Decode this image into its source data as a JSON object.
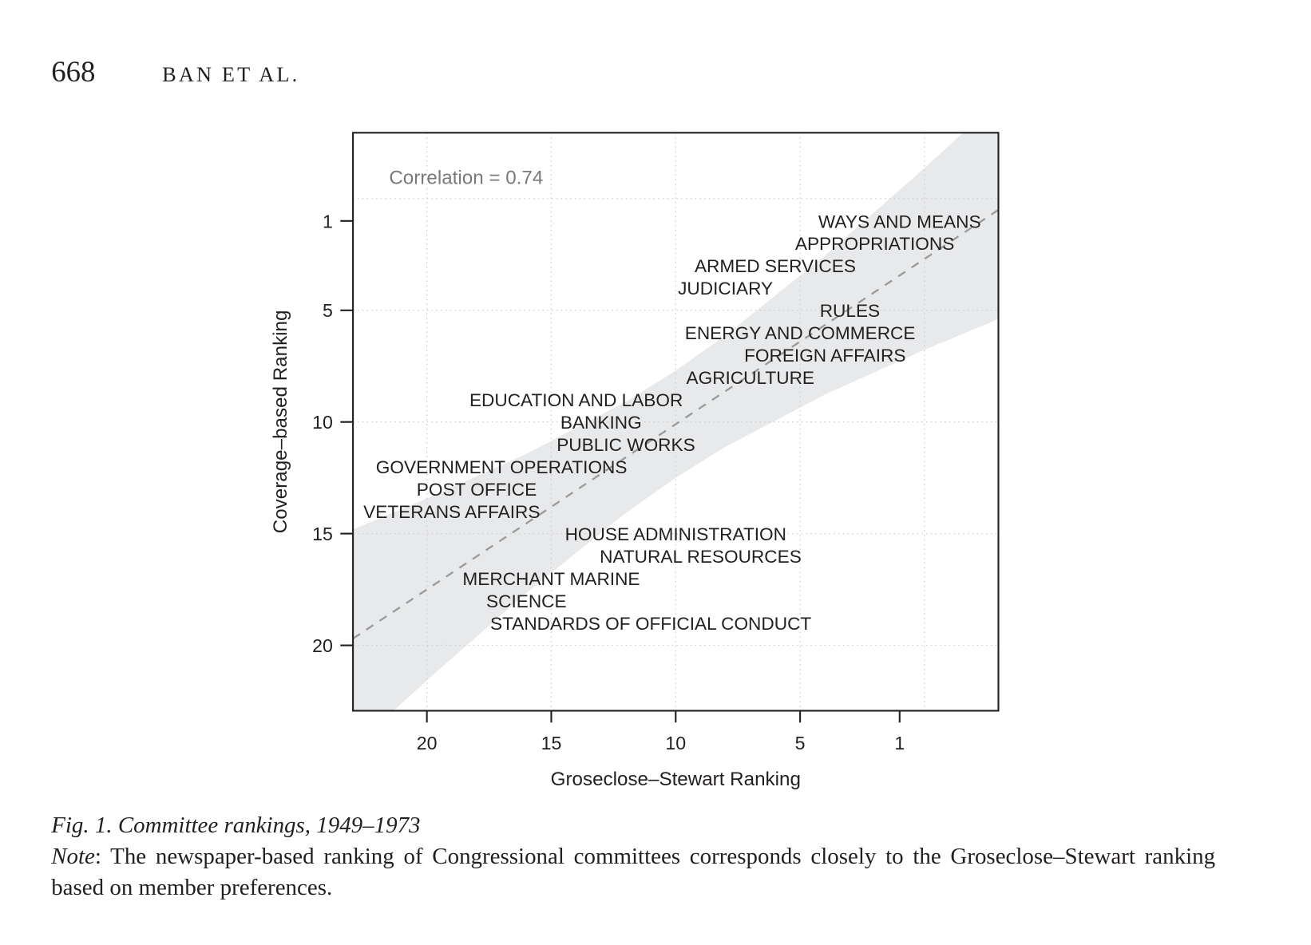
{
  "header": {
    "page_number": "668",
    "running_head": "BAN ET AL."
  },
  "caption": {
    "title": "Fig. 1.  Committee rankings, 1949–1973",
    "note_label": "Note",
    "note_text": ": The newspaper-based ranking of Congressional committees corresponds closely to the Groseclose–Stewart ranking based on member preferences."
  },
  "chart_data": {
    "type": "scatter",
    "title": "",
    "annotation": "Correlation = 0.74",
    "correlation": 0.74,
    "xlabel": "Groseclose–Stewart Ranking",
    "ylabel": "Coverage–based Ranking",
    "xlim": [
      22.97,
      -2.97
    ],
    "ylim": [
      22.93,
      -2.95
    ],
    "x_reversed": true,
    "y_reversed": true,
    "xticks": [
      20,
      15,
      10,
      5,
      1
    ],
    "yticks": [
      1,
      5,
      10,
      15,
      20
    ],
    "x_grid": [
      20,
      15,
      10,
      5,
      0
    ],
    "y_grid": [
      0,
      5,
      10,
      15,
      20
    ],
    "grid": true,
    "fit_line": {
      "intercept": 2.7,
      "slope": 0.74,
      "style": "dashed"
    },
    "confidence_band": [
      {
        "x": -3,
        "lower": -4.42,
        "upper": 5.38
      },
      {
        "x": 0,
        "lower": -1.37,
        "upper": 6.77
      },
      {
        "x": 4,
        "lower": 2.55,
        "upper": 8.77
      },
      {
        "x": 8,
        "lower": 6.13,
        "upper": 11.11
      },
      {
        "x": 10,
        "lower": 7.7,
        "upper": 12.5
      },
      {
        "x": 12,
        "lower": 9.09,
        "upper": 14.07
      },
      {
        "x": 16,
        "lower": 11.43,
        "upper": 17.65
      },
      {
        "x": 20,
        "lower": 13.43,
        "upper": 21.57
      },
      {
        "x": 23,
        "lower": 14.82,
        "upper": 24.62
      }
    ],
    "points": [
      {
        "label": "WAYS AND MEANS",
        "x": 1,
        "y": 1
      },
      {
        "label": "APPROPRIATIONS",
        "x": 2,
        "y": 2
      },
      {
        "label": "ARMED SERVICES",
        "x": 6,
        "y": 3
      },
      {
        "label": "JUDICIARY",
        "x": 8,
        "y": 4
      },
      {
        "label": "RULES",
        "x": 3,
        "y": 5
      },
      {
        "label": "ENERGY AND COMMERCE",
        "x": 5,
        "y": 6
      },
      {
        "label": "FOREIGN AFFAIRS",
        "x": 4,
        "y": 7
      },
      {
        "label": "AGRICULTURE",
        "x": 7,
        "y": 8
      },
      {
        "label": "EDUCATION AND LABOR",
        "x": 14,
        "y": 9
      },
      {
        "label": "BANKING",
        "x": 13,
        "y": 10
      },
      {
        "label": "PUBLIC WORKS",
        "x": 12,
        "y": 11
      },
      {
        "label": "GOVERNMENT OPERATIONS",
        "x": 17,
        "y": 12
      },
      {
        "label": "POST OFFICE",
        "x": 18,
        "y": 13
      },
      {
        "label": "VETERANS AFFAIRS",
        "x": 19,
        "y": 14
      },
      {
        "label": "HOUSE ADMINISTRATION",
        "x": 10,
        "y": 15
      },
      {
        "label": "NATURAL RESOURCES",
        "x": 9,
        "y": 16
      },
      {
        "label": "MERCHANT MARINE",
        "x": 15,
        "y": 17
      },
      {
        "label": "SCIENCE",
        "x": 16,
        "y": 18
      },
      {
        "label": "STANDARDS OF OFFICIAL CONDUCT",
        "x": 11,
        "y": 19
      }
    ],
    "colors": {
      "band": "#e8e9ea",
      "fit": "#9a9a9a",
      "grid": "#cfcfcf",
      "annotation": "#7a7a7a",
      "text": "#231f20"
    }
  }
}
